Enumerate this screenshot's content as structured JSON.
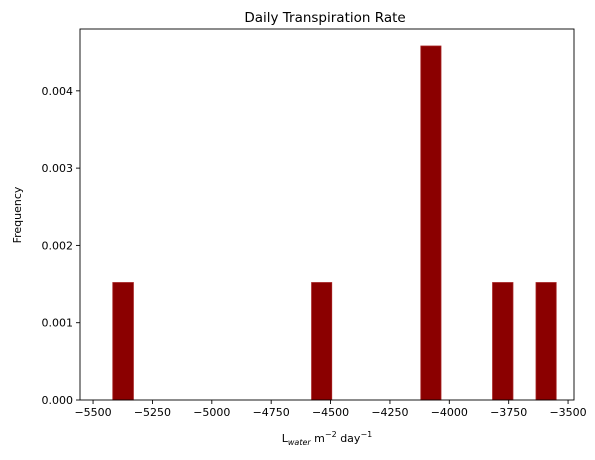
{
  "chart_data": {
    "type": "bar",
    "title": "Daily Transpiration Rate",
    "ylabel": "Frequency",
    "xlabel": {
      "base": "L",
      "sub": "water",
      "unit1": " m",
      "exp1": "−2",
      "unit2": " day",
      "exp2": "−1"
    },
    "xlim": [
      -5555,
      -3475
    ],
    "ylim": [
      0,
      0.0048
    ],
    "x_ticks": [
      -5500,
      -5250,
      -5000,
      -4750,
      -4500,
      -4250,
      -4000,
      -3750,
      -3500
    ],
    "x_tick_labels": [
      "−5500",
      "−5250",
      "−5000",
      "−4750",
      "−4500",
      "−4250",
      "−4000",
      "−3750",
      "−3500"
    ],
    "y_ticks": [
      0,
      0.001,
      0.002,
      0.003,
      0.004
    ],
    "y_tick_labels": [
      "0.000",
      "0.001",
      "0.002",
      "0.003",
      "0.004"
    ],
    "bins": [
      {
        "x0": -5417,
        "x1": -5330,
        "value": 0.00152
      },
      {
        "x0": -4580,
        "x1": -4495,
        "value": 0.00152
      },
      {
        "x0": -4120,
        "x1": -4035,
        "value": 0.00458
      },
      {
        "x0": -3818,
        "x1": -3732,
        "value": 0.00152
      },
      {
        "x0": -3635,
        "x1": -3550,
        "value": 0.00152
      }
    ],
    "bar_color": "#8b0000",
    "bar_edge_color": "#a52020",
    "grid": false
  }
}
